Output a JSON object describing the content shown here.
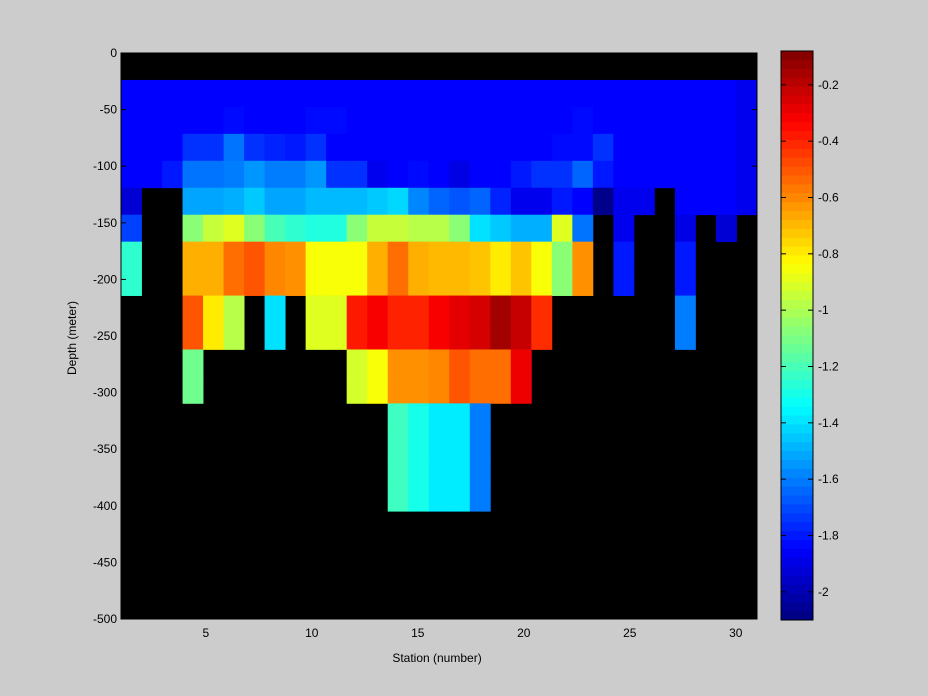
{
  "chart_data": {
    "type": "heatmap",
    "title": "",
    "xlabel": "Station (number)",
    "ylabel": "Depth (meter)",
    "xlim": [
      1,
      31
    ],
    "ylim": [
      -500,
      0
    ],
    "x_ticks": [
      5,
      10,
      15,
      20,
      25,
      30
    ],
    "y_ticks": [
      0,
      -50,
      -100,
      -150,
      -200,
      -250,
      -300,
      -350,
      -400,
      -450,
      -500
    ],
    "colorbar": {
      "colormap": "jet",
      "range": [
        -2.1,
        -0.08
      ],
      "ticks": [
        -0.2,
        -0.4,
        -0.6,
        -0.8,
        -1,
        -1.2,
        -1.4,
        -1.6,
        -1.8,
        -2
      ]
    },
    "background_color": "#000000",
    "stations": [
      1,
      2,
      3,
      4,
      5,
      6,
      7,
      8,
      9,
      10,
      11,
      12,
      13,
      14,
      15,
      16,
      17,
      18,
      19,
      20,
      21,
      22,
      23,
      24,
      25,
      26,
      27,
      28,
      29,
      30,
      31
    ],
    "depths": [
      0,
      -25,
      -50,
      -75,
      -100,
      -125,
      -150,
      -175,
      -200,
      -225,
      -250,
      -275,
      -300,
      -325,
      -350,
      -375,
      -400,
      -425,
      -450,
      -475,
      -500
    ],
    "values": [
      [
        null,
        null,
        null,
        null,
        null,
        null,
        null,
        null,
        null,
        null,
        null,
        null,
        null,
        null,
        null,
        null,
        null,
        null,
        null,
        null,
        null,
        null,
        null,
        null,
        null,
        null,
        null,
        null,
        null,
        null,
        null
      ],
      [
        -1.85,
        -1.85,
        -1.85,
        -1.85,
        -1.85,
        -1.85,
        -1.85,
        -1.85,
        -1.85,
        -1.85,
        -1.85,
        -1.85,
        -1.85,
        -1.85,
        -1.85,
        -1.85,
        -1.85,
        -1.85,
        -1.85,
        -1.85,
        -1.85,
        -1.85,
        -1.85,
        -1.85,
        -1.85,
        -1.85,
        -1.85,
        -1.85,
        -1.85,
        -1.85,
        -1.88
      ],
      [
        -1.85,
        -1.85,
        -1.85,
        -1.85,
        -1.85,
        -1.83,
        -1.85,
        -1.85,
        -1.85,
        -1.83,
        -1.83,
        -1.85,
        -1.85,
        -1.85,
        -1.85,
        -1.85,
        -1.85,
        -1.85,
        -1.85,
        -1.85,
        -1.85,
        -1.85,
        -1.83,
        -1.85,
        -1.85,
        -1.85,
        -1.85,
        -1.85,
        -1.85,
        -1.85,
        -1.88
      ],
      [
        -1.85,
        -1.85,
        -1.85,
        -1.75,
        -1.75,
        -1.62,
        -1.75,
        -1.78,
        -1.8,
        -1.75,
        -1.85,
        -1.85,
        -1.85,
        -1.85,
        -1.85,
        -1.85,
        -1.85,
        -1.85,
        -1.85,
        -1.85,
        -1.85,
        -1.83,
        -1.83,
        -1.75,
        -1.85,
        -1.85,
        -1.85,
        -1.85,
        -1.85,
        -1.85,
        -1.88
      ],
      [
        -1.85,
        -1.85,
        -1.8,
        -1.62,
        -1.62,
        -1.6,
        -1.55,
        -1.6,
        -1.6,
        -1.55,
        -1.75,
        -1.75,
        -1.88,
        -1.85,
        -1.83,
        -1.85,
        -1.9,
        -1.85,
        -1.85,
        -1.8,
        -1.75,
        -1.75,
        -1.65,
        -1.8,
        -1.85,
        -1.85,
        -1.85,
        -1.85,
        -1.85,
        -1.85,
        -1.88
      ],
      [
        -1.93,
        null,
        null,
        -1.52,
        -1.52,
        -1.5,
        -1.45,
        -1.52,
        -1.52,
        -1.48,
        -1.48,
        -1.48,
        -1.45,
        -1.42,
        -1.58,
        -1.65,
        -1.68,
        -1.65,
        -1.78,
        -1.88,
        -1.88,
        -1.8,
        -1.85,
        -2.08,
        -1.88,
        -1.88,
        null,
        -1.85,
        -1.85,
        -1.85,
        -1.88
      ],
      [
        -1.72,
        null,
        null,
        -1.07,
        -0.95,
        -0.9,
        -1.07,
        -1.2,
        -1.25,
        -1.28,
        -1.28,
        -1.07,
        -0.95,
        -0.95,
        -0.98,
        -0.98,
        -1.07,
        -1.4,
        -1.45,
        -1.5,
        -1.5,
        -0.9,
        -1.62,
        null,
        -1.88,
        null,
        null,
        -1.9,
        null,
        -1.93,
        null
      ],
      [
        -1.25,
        null,
        null,
        -0.68,
        -0.68,
        -0.55,
        -0.5,
        -0.6,
        -0.62,
        -0.85,
        -0.85,
        -0.85,
        -0.68,
        -0.55,
        -0.68,
        -0.7,
        -0.7,
        -0.72,
        -0.8,
        -0.72,
        -0.85,
        -1.07,
        -0.62,
        null,
        -1.8,
        null,
        null,
        -1.8,
        null,
        null,
        null
      ],
      [
        -1.25,
        null,
        null,
        -0.68,
        -0.68,
        -0.55,
        -0.5,
        -0.6,
        -0.62,
        -0.85,
        -0.85,
        -0.85,
        -0.68,
        -0.55,
        -0.68,
        -0.7,
        -0.7,
        -0.72,
        -0.8,
        -0.72,
        -0.85,
        -1.07,
        -0.62,
        null,
        -1.8,
        null,
        null,
        -1.8,
        null,
        null,
        null
      ],
      [
        null,
        null,
        null,
        -0.5,
        -0.8,
        -0.98,
        null,
        -1.4,
        null,
        -0.9,
        -0.9,
        -0.38,
        -0.32,
        -0.4,
        -0.4,
        -0.32,
        -0.28,
        -0.25,
        -0.15,
        -0.22,
        -0.42,
        null,
        null,
        null,
        null,
        null,
        null,
        -1.6,
        null,
        null,
        null
      ],
      [
        null,
        null,
        null,
        -0.5,
        -0.8,
        -0.98,
        null,
        -1.4,
        null,
        -0.9,
        -0.9,
        -0.38,
        -0.32,
        -0.4,
        -0.4,
        -0.32,
        -0.28,
        -0.25,
        -0.15,
        -0.22,
        -0.42,
        null,
        null,
        null,
        null,
        null,
        null,
        -1.6,
        null,
        null,
        null
      ],
      [
        null,
        null,
        null,
        -1.12,
        null,
        null,
        null,
        null,
        null,
        null,
        null,
        -0.92,
        -0.85,
        -0.62,
        -0.62,
        -0.6,
        -0.5,
        -0.55,
        -0.55,
        -0.3,
        null,
        null,
        null,
        null,
        null,
        null,
        null,
        null,
        null,
        null,
        null
      ],
      [
        null,
        null,
        null,
        -1.12,
        null,
        null,
        null,
        null,
        null,
        null,
        null,
        -0.92,
        -0.85,
        -0.62,
        -0.62,
        -0.6,
        -0.5,
        -0.55,
        -0.55,
        -0.3,
        null,
        null,
        null,
        null,
        null,
        null,
        null,
        null,
        null,
        null,
        null
      ],
      [
        null,
        null,
        null,
        null,
        null,
        null,
        null,
        null,
        null,
        null,
        null,
        null,
        null,
        -1.22,
        -1.3,
        -1.38,
        -1.38,
        -1.6,
        null,
        null,
        null,
        null,
        null,
        null,
        null,
        null,
        null,
        null,
        null,
        null,
        null
      ],
      [
        null,
        null,
        null,
        null,
        null,
        null,
        null,
        null,
        null,
        null,
        null,
        null,
        null,
        -1.22,
        -1.3,
        -1.38,
        -1.38,
        -1.6,
        null,
        null,
        null,
        null,
        null,
        null,
        null,
        null,
        null,
        null,
        null,
        null,
        null
      ],
      [
        null,
        null,
        null,
        null,
        null,
        null,
        null,
        null,
        null,
        null,
        null,
        null,
        null,
        -1.22,
        -1.3,
        -1.38,
        -1.38,
        -1.6,
        null,
        null,
        null,
        null,
        null,
        null,
        null,
        null,
        null,
        null,
        null,
        null,
        null
      ],
      [
        null,
        null,
        null,
        null,
        null,
        null,
        null,
        null,
        null,
        null,
        null,
        null,
        null,
        -1.22,
        -1.3,
        -1.38,
        -1.38,
        -1.6,
        null,
        null,
        null,
        null,
        null,
        null,
        null,
        null,
        null,
        null,
        null,
        null,
        null
      ],
      [
        null,
        null,
        null,
        null,
        null,
        null,
        null,
        null,
        null,
        null,
        null,
        null,
        null,
        null,
        null,
        null,
        null,
        null,
        null,
        null,
        null,
        null,
        null,
        null,
        null,
        null,
        null,
        null,
        null,
        null,
        null
      ],
      [
        null,
        null,
        null,
        null,
        null,
        null,
        null,
        null,
        null,
        null,
        null,
        null,
        null,
        null,
        null,
        null,
        null,
        null,
        null,
        null,
        null,
        null,
        null,
        null,
        null,
        null,
        null,
        null,
        null,
        null,
        null
      ],
      [
        null,
        null,
        null,
        null,
        null,
        null,
        null,
        null,
        null,
        null,
        null,
        null,
        null,
        null,
        null,
        null,
        null,
        null,
        null,
        null,
        null,
        null,
        null,
        null,
        null,
        null,
        null,
        null,
        null,
        null,
        null
      ],
      [
        null,
        null,
        null,
        null,
        null,
        null,
        null,
        null,
        null,
        null,
        null,
        null,
        null,
        null,
        null,
        null,
        null,
        null,
        null,
        null,
        null,
        null,
        null,
        null,
        null,
        null,
        null,
        null,
        null,
        null,
        null
      ]
    ]
  }
}
